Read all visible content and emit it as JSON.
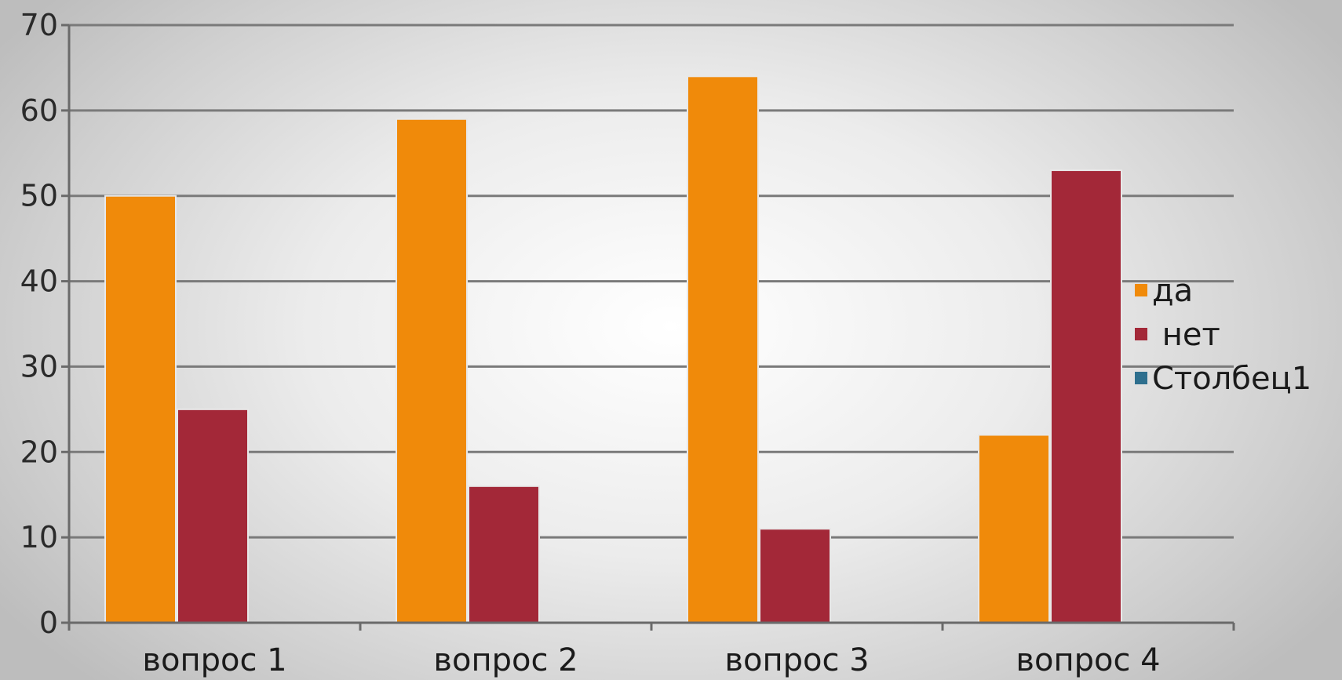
{
  "chart_data": {
    "type": "bar",
    "categories": [
      "вопрос 1",
      "вопрос 2",
      "вопрос 3",
      "вопрос 4"
    ],
    "series": [
      {
        "name": "да",
        "color": "#f08a0a",
        "values": [
          50,
          59,
          64,
          22
        ]
      },
      {
        "name": " нет",
        "color": "#a32838",
        "values": [
          25,
          16,
          11,
          53
        ]
      },
      {
        "name": "Столбец1",
        "color": "#2e6f8e",
        "values": [
          0,
          0,
          0,
          0
        ]
      }
    ],
    "ylim": [
      0,
      70
    ],
    "yticks": [
      0,
      10,
      20,
      30,
      40,
      50,
      60,
      70
    ],
    "grid": true,
    "legend_position": "right",
    "title": "",
    "xlabel": "",
    "ylabel": ""
  }
}
